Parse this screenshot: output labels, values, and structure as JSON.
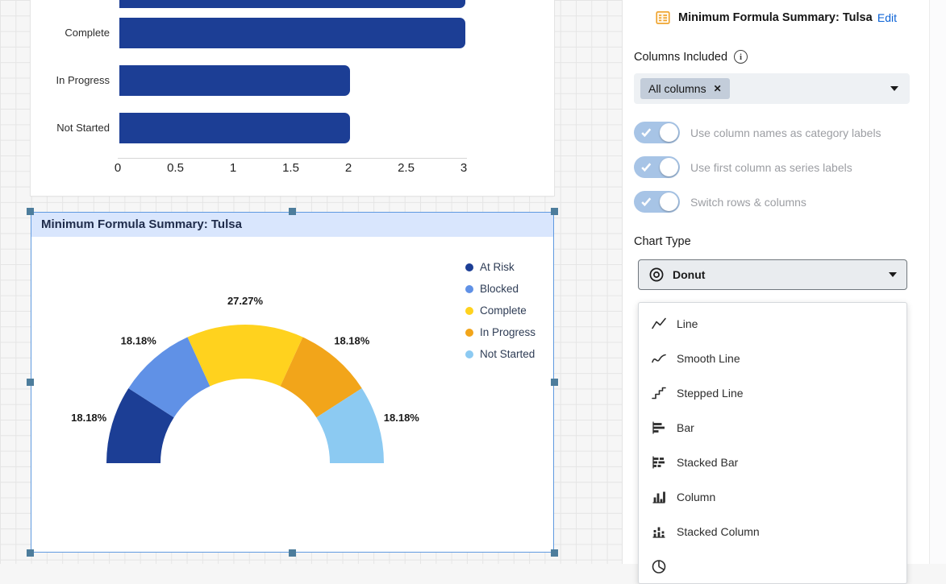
{
  "colors": {
    "bar_fill": "#1c3e95",
    "selection_outline": "#5f9ae0",
    "selection_handle": "#4d7d9c",
    "widget_titlebar_bg": "#d9e6fd",
    "edit_link": "#0b62d6",
    "toggle_on_fill": "#a7c4e6",
    "chip_bg": "#c3cdda",
    "select_bg": "#eef1f4"
  },
  "chart_data": [
    {
      "type": "bar",
      "orientation": "horizontal",
      "categories": [
        "Complete",
        "In Progress",
        "Not Started"
      ],
      "values": [
        3,
        2,
        2
      ],
      "clipped_top_bar_value": 3,
      "xticks": [
        0,
        0.5,
        1,
        1.5,
        2,
        2.5,
        3
      ],
      "xlim": [
        0,
        3
      ],
      "bar_color": "#1c3e95",
      "grid": false
    },
    {
      "type": "donut",
      "variant": "half-donut",
      "title": "Minimum Formula Summary: Tulsa",
      "series": [
        {
          "name": "At Risk",
          "value": 2,
          "percent_label": "18.18%",
          "color": "#1c3e95"
        },
        {
          "name": "Blocked",
          "value": 2,
          "percent_label": "18.18%",
          "color": "#6091e6"
        },
        {
          "name": "Complete",
          "value": 3,
          "percent_label": "27.27%",
          "color": "#ffd21e"
        },
        {
          "name": "In Progress",
          "value": 2,
          "percent_label": "18.18%",
          "color": "#f2a51a"
        },
        {
          "name": "Not Started",
          "value": 2,
          "percent_label": "18.18%",
          "color": "#8ccaf2"
        }
      ],
      "legend_position": "right",
      "selected": true
    }
  ],
  "panel": {
    "title": "Minimum Formula Summary: Tulsa",
    "edit_label": "Edit",
    "columns_included_label": "Columns Included",
    "columns_chip": "All columns",
    "toggles": [
      {
        "label": "Use column names as category labels",
        "state": "on"
      },
      {
        "label": "Use first column as series labels",
        "state": "on"
      },
      {
        "label": "Switch rows & columns",
        "state": "on"
      }
    ],
    "chart_type_label": "Chart Type",
    "chart_type_value": "Donut",
    "chart_type_options_visible": [
      "Line",
      "Smooth Line",
      "Stepped Line",
      "Bar",
      "Stacked Bar",
      "Column",
      "Stacked Column"
    ]
  }
}
